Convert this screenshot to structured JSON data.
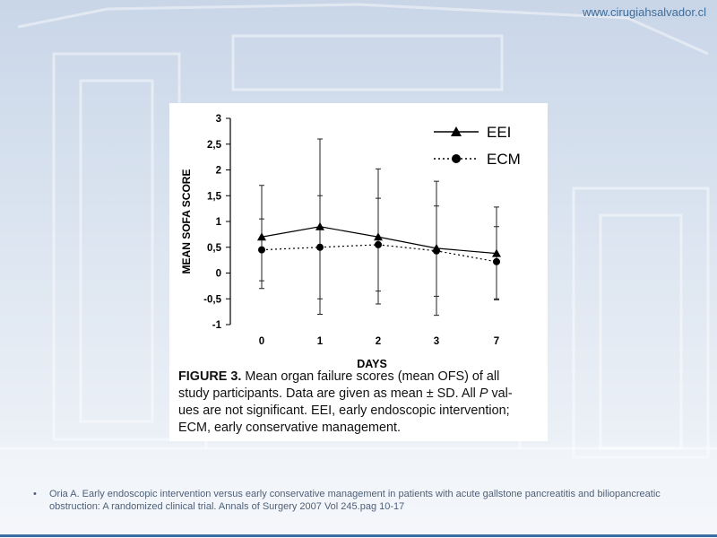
{
  "site": {
    "url": "www.cirugiahsalvador.cl"
  },
  "figure": {
    "caption_label": "FIGURE 3.",
    "caption_line1": "Mean organ failure scores (mean OFS) of all",
    "caption_line2_a": "study participants. Data are given as mean ± SD. All ",
    "caption_line2_p": "P",
    "caption_line2_b": " val-",
    "caption_line3": "ues are not significant. EEI, early endoscopic intervention;",
    "caption_line4": "ECM, early conservative management."
  },
  "citation": {
    "bullet": "•",
    "text": "Oria A. Early endoscopic intervention versus early conservative management in patients with acute gallstone pancreatitis and biliopancreatic obstruction: A randomized clinical trial. Annals of Surgery 2007 Vol 245.pag 10-17"
  },
  "chart_data": {
    "type": "line",
    "title": "",
    "xlabel": "DAYS",
    "ylabel": "MEAN SOFA SCORE",
    "categories": [
      "0",
      "1",
      "2",
      "3",
      "7"
    ],
    "ylim": [
      -1,
      3
    ],
    "yticks": [
      "-1",
      "-0,5",
      "0",
      "0,5",
      "1",
      "1,5",
      "2",
      "2,5",
      "3"
    ],
    "legend_position": "top-right",
    "grid": false,
    "series": [
      {
        "name": "EEI",
        "style": "solid",
        "marker": "triangle",
        "values": [
          0.7,
          0.9,
          0.7,
          0.48,
          0.38
        ],
        "sd_upper": [
          1.7,
          2.6,
          2.02,
          1.78,
          1.28
        ],
        "sd_lower": [
          -0.3,
          -0.8,
          -0.6,
          -0.82,
          -0.52
        ]
      },
      {
        "name": "ECM",
        "style": "dotted",
        "marker": "circle",
        "values": [
          0.45,
          0.5,
          0.55,
          0.43,
          0.22
        ],
        "sd_upper": [
          1.05,
          1.5,
          1.45,
          1.3,
          0.9
        ],
        "sd_lower": [
          -0.15,
          -0.5,
          -0.35,
          -0.45,
          -0.5
        ]
      }
    ]
  }
}
